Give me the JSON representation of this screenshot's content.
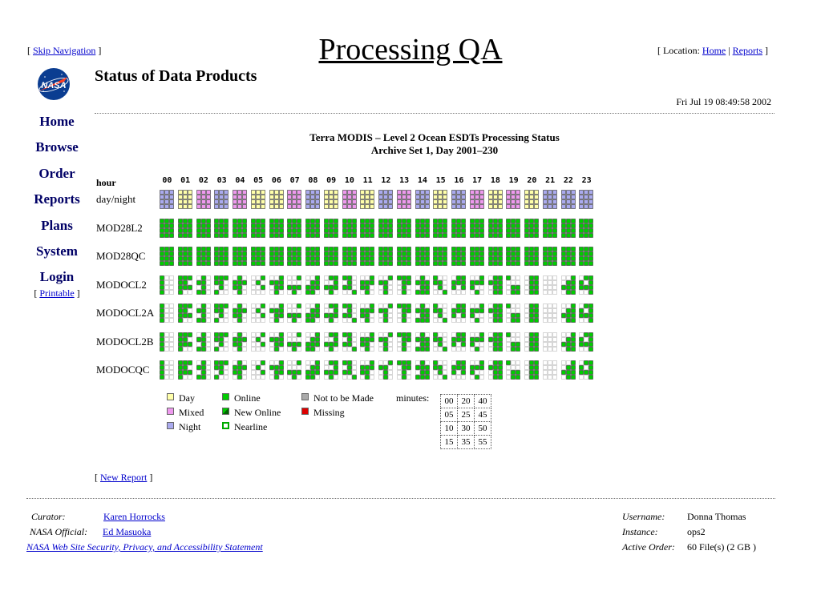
{
  "header": {
    "skip_nav_label": "Skip Navigation",
    "title": "Processing QA",
    "location_prefix": "Location:",
    "location_links": [
      "Home",
      "Reports"
    ]
  },
  "logo": {
    "text": "NASA",
    "colors": {
      "blue": "#0b3d91",
      "red": "#fc3d21"
    }
  },
  "subtitle": "Status of Data Products",
  "timestamp": "Fri Jul 19 08:49:58 2002",
  "nav": {
    "items": [
      "Home",
      "Browse",
      "Order",
      "Reports",
      "Plans",
      "System",
      "Login"
    ],
    "printable_label": "Printable"
  },
  "chart_title": {
    "line1": "Terra MODIS – Level 2 Ocean ESDTs Processing Status",
    "line2": "Archive Set 1, Day 2001–230"
  },
  "grid": {
    "hour_label": "hour",
    "hours": [
      "00",
      "01",
      "02",
      "03",
      "04",
      "05",
      "06",
      "07",
      "08",
      "09",
      "10",
      "11",
      "12",
      "13",
      "14",
      "15",
      "16",
      "17",
      "18",
      "19",
      "20",
      "21",
      "22",
      "23"
    ],
    "daynight_label": "day/night",
    "daynight": [
      "N",
      "D",
      "M",
      "N",
      "M",
      "D",
      "D",
      "M",
      "N",
      "D",
      "M",
      "D",
      "N",
      "M",
      "N",
      "D",
      "N",
      "M",
      "D",
      "M",
      "D",
      "N",
      "N",
      "N"
    ],
    "products": [
      {
        "name": "MOD28L2",
        "pattern": "full"
      },
      {
        "name": "MOD28QC",
        "pattern": "full"
      },
      {
        "name": "MODOCL2",
        "pattern": "partial"
      },
      {
        "name": "MODOCL2A",
        "pattern": "partial"
      },
      {
        "name": "MODOCL2B",
        "pattern": "partial"
      },
      {
        "name": "MODOCQC",
        "pattern": "partial"
      }
    ],
    "colors": {
      "day": "#ffffaa",
      "mixed": "#ee99ee",
      "night": "#aaaaee",
      "online": "#00cc00",
      "not_made": "#aaaaaa",
      "missing": "#dd0000",
      "grid_line": "#333333"
    }
  },
  "legend": {
    "items": [
      {
        "label": "Day",
        "color": "#ffffaa"
      },
      {
        "label": "Mixed",
        "color": "#ee99ee"
      },
      {
        "label": "Night",
        "color": "#aaaaee"
      },
      {
        "label": "Online",
        "color": "#00cc00"
      },
      {
        "label": "New Online",
        "color": "#00aa00"
      },
      {
        "label": "Nearline",
        "color": "#ffffff"
      },
      {
        "label": "Not to be Made",
        "color": "#aaaaaa"
      },
      {
        "label": "Missing",
        "color": "#dd0000"
      }
    ],
    "minutes_label": "minutes:",
    "minutes": [
      [
        "00",
        "20",
        "40"
      ],
      [
        "05",
        "25",
        "45"
      ],
      [
        "10",
        "30",
        "50"
      ],
      [
        "15",
        "35",
        "55"
      ]
    ]
  },
  "new_report_label": "New Report",
  "footer": {
    "curator_label": "Curator:",
    "curator": "Karen Horrocks",
    "official_label": "NASA Official:",
    "official": "Ed Masuoka",
    "policy_link": "NASA Web Site Security, Privacy, and Accessibility Statement",
    "username_label": "Username:",
    "username": "Donna Thomas",
    "instance_label": "Instance:",
    "instance": "ops2",
    "order_label": "Active Order:",
    "order": "60 File(s) (2 GB )"
  }
}
